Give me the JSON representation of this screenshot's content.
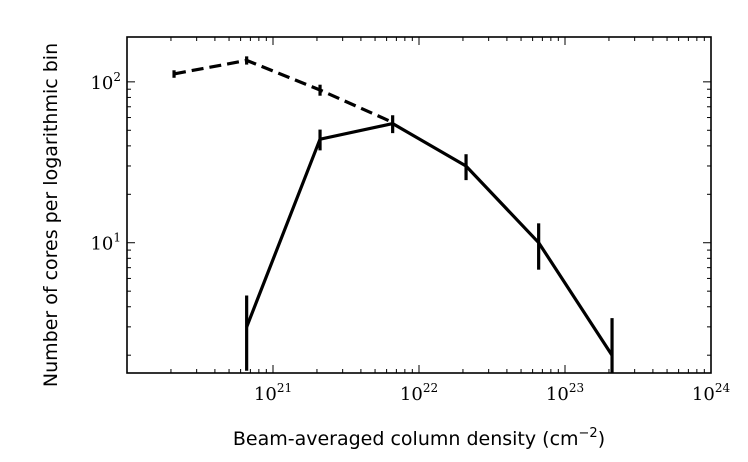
{
  "chart_data": {
    "type": "line",
    "xlabel": "Beam-averaged column density (cm$^{-2}$)",
    "ylabel": "Number of cores per logarithmic bin",
    "x_scale": "log",
    "y_scale": "log",
    "xlim": [
      1e+20,
      1e+24
    ],
    "ylim": [
      1.55,
      190
    ],
    "x_tick_labels": [
      {
        "value": 1e+21,
        "base": "10",
        "exp": "21"
      },
      {
        "value": 1e+22,
        "base": "10",
        "exp": "22"
      },
      {
        "value": 1e+23,
        "base": "10",
        "exp": "23"
      },
      {
        "value": 1e+24,
        "base": "10",
        "exp": "24"
      }
    ],
    "y_tick_labels": [
      {
        "value": 10,
        "base": "10",
        "exp": "1"
      },
      {
        "value": 100,
        "base": "10",
        "exp": "2"
      }
    ],
    "series": [
      {
        "line_style": "dashed",
        "color": "#000000",
        "points": [
          {
            "x": 2.1e+20,
            "y": 112,
            "err_low": 6,
            "err_high": 6
          },
          {
            "x": 6.6e+20,
            "y": 136,
            "err_low": 8,
            "err_high": 8
          },
          {
            "x": 2.1e+21,
            "y": 89,
            "err_low": 7,
            "err_high": 7
          },
          {
            "x": 6.6e+21,
            "y": 56,
            "err_low": 0,
            "err_high": 0
          }
        ]
      },
      {
        "line_style": "solid",
        "color": "#000000",
        "points": [
          {
            "x": 6.6e+20,
            "y": 3.0,
            "err_low": 1.4,
            "err_high": 1.7
          },
          {
            "x": 2.1e+21,
            "y": 44,
            "err_low": 6.5,
            "err_high": 6.5
          },
          {
            "x": 6.6e+21,
            "y": 55,
            "err_low": 7,
            "err_high": 7
          },
          {
            "x": 2.1e+22,
            "y": 30,
            "err_low": 5.5,
            "err_high": 5.5
          },
          {
            "x": 6.6e+22,
            "y": 10,
            "err_low": 3.2,
            "err_high": 3.2
          },
          {
            "x": 2.1e+23,
            "y": 2.0,
            "err_low": 1.4,
            "err_high": 1.4
          }
        ]
      }
    ],
    "grid": false,
    "legend": "none"
  }
}
